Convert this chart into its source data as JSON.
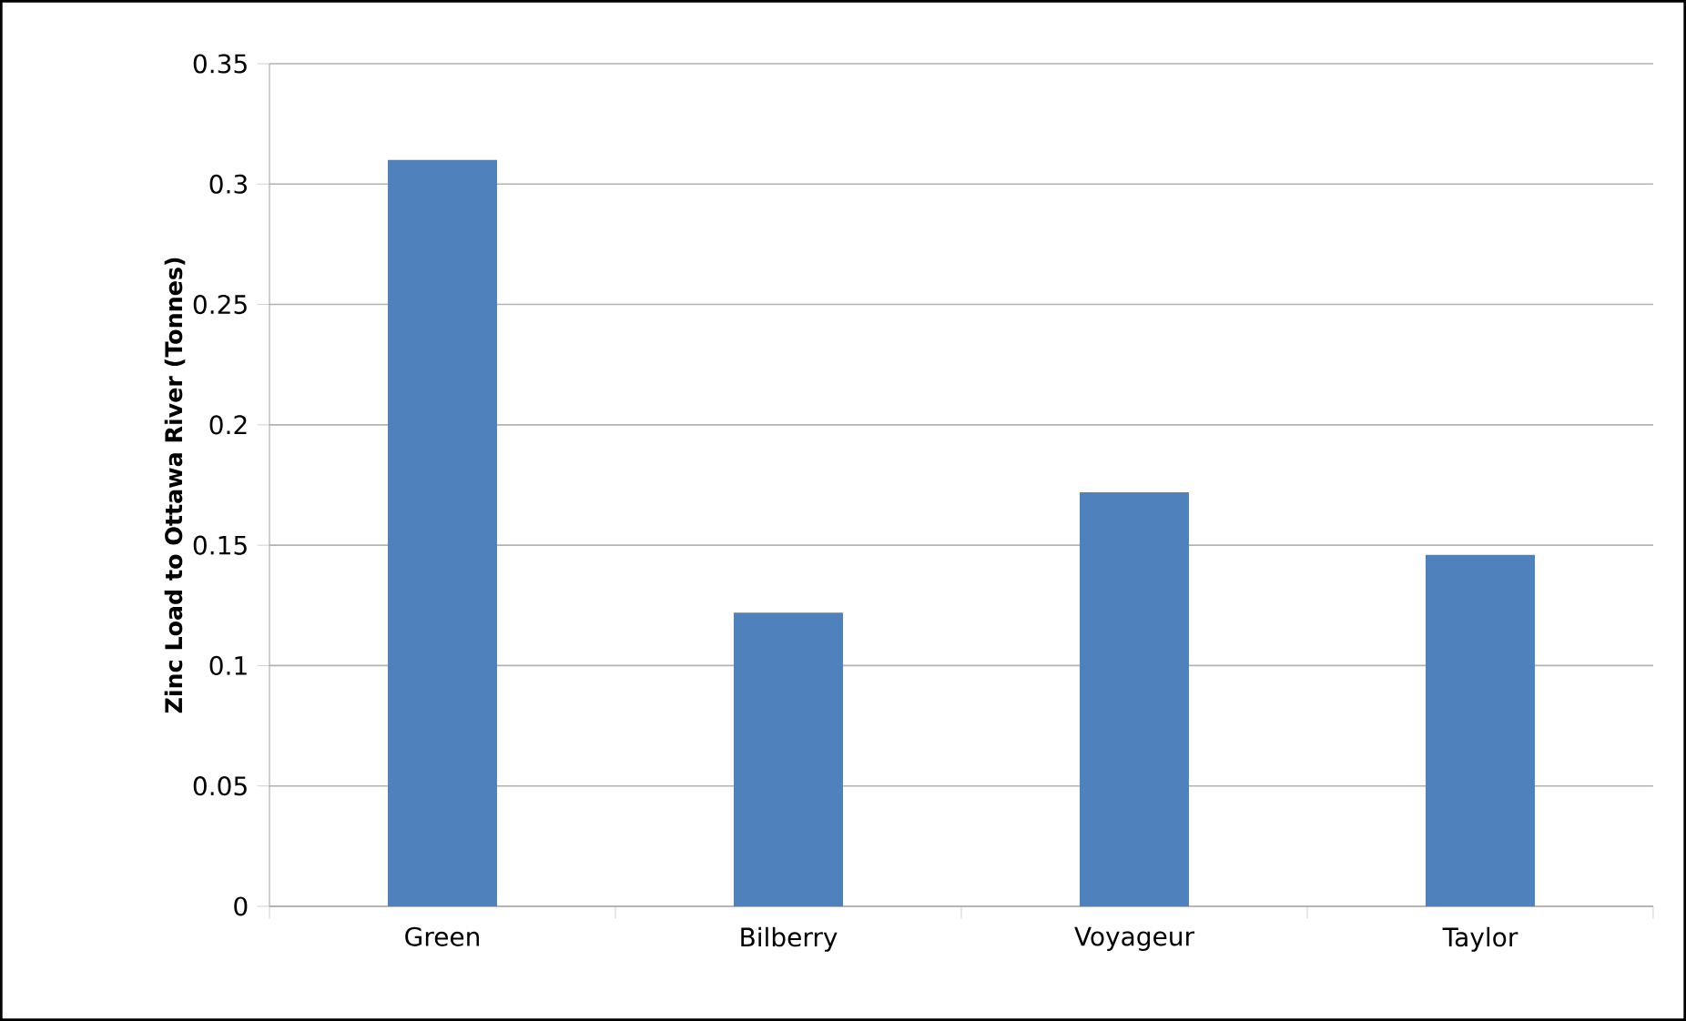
{
  "chart_data": {
    "type": "bar",
    "ylabel": "Zinc Load to Ottawa River (Tonnes)",
    "categories": [
      "Green",
      "Bilberry",
      "Voyageur",
      "Taylor"
    ],
    "values": [
      0.31,
      0.122,
      0.172,
      0.146
    ],
    "color": "#4f81bd",
    "ylim": [
      0,
      0.35
    ],
    "yticks": [
      0,
      0.05,
      0.1,
      0.15,
      0.2,
      0.25,
      0.3,
      0.35
    ],
    "grid": "y"
  }
}
